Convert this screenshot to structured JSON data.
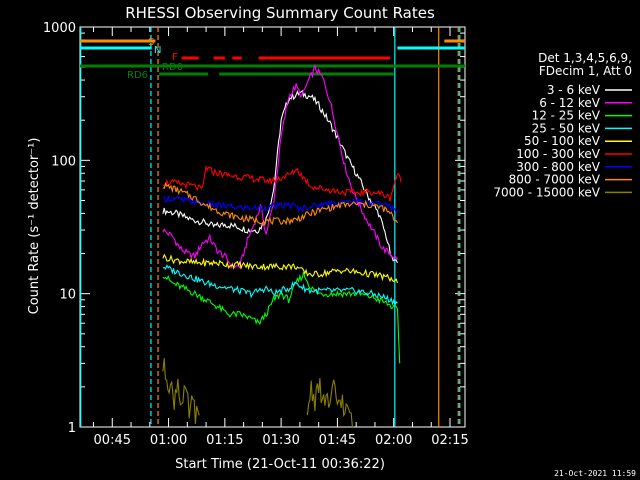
{
  "chart_data": {
    "type": "line",
    "title": "RHESSI Observing Summary Count Rates",
    "xlabel": "Start Time (21-Oct-11 00:36:22)",
    "ylabel": "Count Rate (s⁻¹ detector⁻¹)",
    "yscale": "log",
    "ylim": [
      1,
      1000
    ],
    "xlim_minutes": [
      36.4,
      139
    ],
    "y_ticks": [
      "1",
      "10",
      "100",
      "1000"
    ],
    "x_ticks": [
      {
        "label": "00:45",
        "t": 45
      },
      {
        "label": "01:00",
        "t": 60
      },
      {
        "label": "01:15",
        "t": 75
      },
      {
        "label": "01:30",
        "t": 90
      },
      {
        "label": "01:45",
        "t": 105
      },
      {
        "label": "02:00",
        "t": 120
      },
      {
        "label": "02:15",
        "t": 135
      }
    ],
    "legend_header": [
      "Det 1,3,4,5,6,9,",
      "FDecim 1, Att 0"
    ],
    "legend_position": "right",
    "series": [
      {
        "name": "3 - 6 keV",
        "color": "#ffffff",
        "points": [
          [
            58.5,
            42
          ],
          [
            62,
            40
          ],
          [
            66,
            36
          ],
          [
            70,
            34
          ],
          [
            72,
            32
          ],
          [
            75,
            33
          ],
          [
            78,
            32
          ],
          [
            81,
            30
          ],
          [
            84,
            30
          ],
          [
            86,
            36
          ],
          [
            88,
            60
          ],
          [
            90,
            200
          ],
          [
            92,
            290
          ],
          [
            95,
            320
          ],
          [
            98,
            300
          ],
          [
            100,
            260
          ],
          [
            103,
            190
          ],
          [
            106,
            130
          ],
          [
            108,
            100
          ],
          [
            110,
            80
          ],
          [
            113,
            55
          ],
          [
            116,
            40
          ],
          [
            118,
            27
          ],
          [
            119.5,
            18
          ],
          [
            121,
            17
          ]
        ]
      },
      {
        "name": "6 - 12 keV",
        "color": "#ff00ff",
        "points": [
          [
            58.5,
            30
          ],
          [
            61,
            27
          ],
          [
            63,
            22
          ],
          [
            65,
            20
          ],
          [
            67,
            19
          ],
          [
            69,
            24
          ],
          [
            71,
            26
          ],
          [
            73,
            21
          ],
          [
            75,
            19
          ],
          [
            77,
            16
          ],
          [
            79,
            16
          ],
          [
            81,
            25
          ],
          [
            83,
            35
          ],
          [
            84.5,
            45
          ],
          [
            86,
            28
          ],
          [
            88,
            48
          ],
          [
            90,
            150
          ],
          [
            92,
            300
          ],
          [
            94,
            360
          ],
          [
            95.5,
            300
          ],
          [
            97,
            380
          ],
          [
            99,
            490
          ],
          [
            101,
            420
          ],
          [
            103,
            280
          ],
          [
            105,
            160
          ],
          [
            107,
            90
          ],
          [
            109,
            60
          ],
          [
            111,
            45
          ],
          [
            113,
            35
          ],
          [
            115,
            28
          ],
          [
            117,
            22
          ],
          [
            119,
            20
          ],
          [
            121,
            18
          ]
        ]
      },
      {
        "name": "12 - 25 keV",
        "color": "#00ff00",
        "points": [
          [
            58.5,
            14
          ],
          [
            61,
            12
          ],
          [
            64,
            11
          ],
          [
            67,
            10
          ],
          [
            70,
            9
          ],
          [
            73,
            8
          ],
          [
            76,
            7
          ],
          [
            79,
            7
          ],
          [
            82,
            6.5
          ],
          [
            84,
            6
          ],
          [
            86,
            7
          ],
          [
            88,
            9
          ],
          [
            90,
            10
          ],
          [
            92,
            9
          ],
          [
            94,
            12
          ],
          [
            96,
            14
          ],
          [
            98,
            11
          ],
          [
            100,
            10
          ],
          [
            103,
            10
          ],
          [
            106,
            10
          ],
          [
            110,
            10
          ],
          [
            114,
            9.5
          ],
          [
            118,
            8.5
          ],
          [
            121,
            7.5
          ],
          [
            121.6,
            3
          ]
        ]
      },
      {
        "name": "25 - 50 keV",
        "color": "#00ffff",
        "points": [
          [
            58.5,
            16
          ],
          [
            61,
            15
          ],
          [
            64,
            14
          ],
          [
            67,
            13
          ],
          [
            70,
            12
          ],
          [
            73,
            11.5
          ],
          [
            76,
            11
          ],
          [
            79,
            10.5
          ],
          [
            82,
            10
          ],
          [
            84,
            10.5
          ],
          [
            86,
            11
          ],
          [
            88,
            10
          ],
          [
            90,
            10.5
          ],
          [
            92,
            11
          ],
          [
            94,
            12
          ],
          [
            96,
            11
          ],
          [
            98,
            10.5
          ],
          [
            100,
            10.5
          ],
          [
            103,
            10.5
          ],
          [
            106,
            10.5
          ],
          [
            110,
            10.5
          ],
          [
            114,
            10
          ],
          [
            117,
            9.5
          ],
          [
            119,
            9
          ],
          [
            121,
            8.5
          ]
        ]
      },
      {
        "name": "50 - 100 keV",
        "color": "#ffff00",
        "points": [
          [
            58.5,
            19
          ],
          [
            61,
            18
          ],
          [
            64,
            17.5
          ],
          [
            67,
            17
          ],
          [
            70,
            17
          ],
          [
            73,
            17
          ],
          [
            76,
            16.5
          ],
          [
            79,
            16.5
          ],
          [
            82,
            16
          ],
          [
            85,
            16
          ],
          [
            88,
            16
          ],
          [
            91,
            16
          ],
          [
            94,
            16
          ],
          [
            96,
            14.5
          ],
          [
            98,
            14
          ],
          [
            100,
            14
          ],
          [
            103,
            14.5
          ],
          [
            106,
            15
          ],
          [
            110,
            14.5
          ],
          [
            114,
            14
          ],
          [
            117,
            13.5
          ],
          [
            119,
            13
          ],
          [
            121,
            12
          ]
        ]
      },
      {
        "name": "100 - 300 keV",
        "color": "#ff0000",
        "points": [
          [
            58.5,
            68
          ],
          [
            61,
            68
          ],
          [
            64,
            66
          ],
          [
            67,
            64
          ],
          [
            69,
            60
          ],
          [
            70,
            88
          ],
          [
            72,
            82
          ],
          [
            75,
            78
          ],
          [
            78,
            76
          ],
          [
            81,
            74
          ],
          [
            84,
            72
          ],
          [
            87,
            70
          ],
          [
            89,
            72
          ],
          [
            91,
            76
          ],
          [
            93,
            80
          ],
          [
            94,
            87
          ],
          [
            96,
            74
          ],
          [
            98,
            64
          ],
          [
            100,
            62
          ],
          [
            103,
            60
          ],
          [
            106,
            58
          ],
          [
            110,
            57
          ],
          [
            114,
            58
          ],
          [
            117,
            56
          ],
          [
            119,
            52
          ],
          [
            121,
            80
          ],
          [
            122,
            68
          ]
        ]
      },
      {
        "name": "300 - 800 keV",
        "color": "#0000ff",
        "points": [
          [
            58.5,
            51
          ],
          [
            61,
            52
          ],
          [
            64,
            50
          ],
          [
            67,
            49
          ],
          [
            70,
            47
          ],
          [
            73,
            46
          ],
          [
            76,
            45
          ],
          [
            79,
            44
          ],
          [
            82,
            44
          ],
          [
            85,
            44
          ],
          [
            88,
            45
          ],
          [
            91,
            46
          ],
          [
            93,
            46
          ],
          [
            95,
            43
          ],
          [
            97,
            45
          ],
          [
            100,
            46
          ],
          [
            103,
            48
          ],
          [
            106,
            48
          ],
          [
            110,
            49
          ],
          [
            114,
            48
          ],
          [
            117,
            47
          ],
          [
            119,
            45
          ],
          [
            121,
            42
          ]
        ]
      },
      {
        "name": "800 - 7000 keV",
        "color": "#ff8c00",
        "points": [
          [
            58.5,
            65
          ],
          [
            61,
            62
          ],
          [
            64,
            57
          ],
          [
            67,
            52
          ],
          [
            70,
            46
          ],
          [
            73,
            42
          ],
          [
            76,
            39
          ],
          [
            79,
            37
          ],
          [
            82,
            36
          ],
          [
            85,
            35
          ],
          [
            88,
            35
          ],
          [
            91,
            35
          ],
          [
            94,
            36
          ],
          [
            97,
            39
          ],
          [
            100,
            42
          ],
          [
            103,
            44
          ],
          [
            106,
            46
          ],
          [
            110,
            47
          ],
          [
            114,
            46
          ],
          [
            117,
            44
          ],
          [
            119,
            40
          ],
          [
            121,
            34
          ]
        ]
      },
      {
        "name": "7000 - 15000 keV",
        "color": "#8b8000",
        "points": [
          [
            58.5,
            2.8
          ],
          [
            59.5,
            2.5
          ],
          [
            60.5,
            2.0
          ],
          [
            61.5,
            1.6
          ],
          [
            62.5,
            2.3
          ],
          [
            63.5,
            1.4
          ],
          [
            64.5,
            1.8
          ],
          [
            65.5,
            1.3
          ],
          [
            66.5,
            1.5
          ],
          [
            67.5,
            1.2
          ],
          [
            68.5,
            1.0
          ],
          [
            97,
            1.3
          ],
          [
            98,
            2.0
          ],
          [
            99,
            1.6
          ],
          [
            100,
            2.2
          ],
          [
            101,
            1.4
          ],
          [
            102,
            1.8
          ],
          [
            103,
            1.3
          ],
          [
            104,
            2.0
          ],
          [
            105,
            1.5
          ],
          [
            106,
            1.7
          ],
          [
            107,
            1.2
          ],
          [
            108,
            1.4
          ],
          [
            109,
            1.0
          ]
        ]
      }
    ],
    "flags": [
      {
        "label": "S",
        "color": "#ff8c00",
        "segments": [
          [
            36.4,
            56.5
          ],
          [
            133.5,
            139
          ]
        ]
      },
      {
        "label": "N",
        "color": "#00ffff",
        "segments": [
          [
            36.4,
            55.5
          ],
          [
            121,
            139
          ]
        ]
      },
      {
        "label": "F",
        "color": "#ff0000",
        "segments": [
          [
            63.5,
            68
          ],
          [
            72,
            75
          ],
          [
            77,
            79.5
          ],
          [
            84,
            119
          ]
        ]
      },
      {
        "label": "RD0",
        "color": "#008000",
        "segments": [
          [
            36.4,
            139
          ]
        ]
      },
      {
        "label": "RD6",
        "color": "#008000",
        "segments": [
          [
            57.5,
            70.5
          ],
          [
            73.5,
            120
          ]
        ]
      }
    ],
    "vertical_lines": [
      {
        "t": 36.6,
        "color": "#00ffff",
        "dashed": false
      },
      {
        "t": 55.3,
        "color": "#00ffff",
        "dashed": true
      },
      {
        "t": 57.2,
        "color": "#ff8c00",
        "dashed": true
      },
      {
        "t": 120.3,
        "color": "#00ffff",
        "dashed": false
      },
      {
        "t": 132,
        "color": "#ff8c00",
        "dashed": false
      },
      {
        "t": 137.2,
        "color": "#ff8c00",
        "dashed": true
      },
      {
        "t": 137.6,
        "color": "#00ffff",
        "dashed": true
      }
    ]
  },
  "timestamp": "21-Oct-2021 11:59"
}
